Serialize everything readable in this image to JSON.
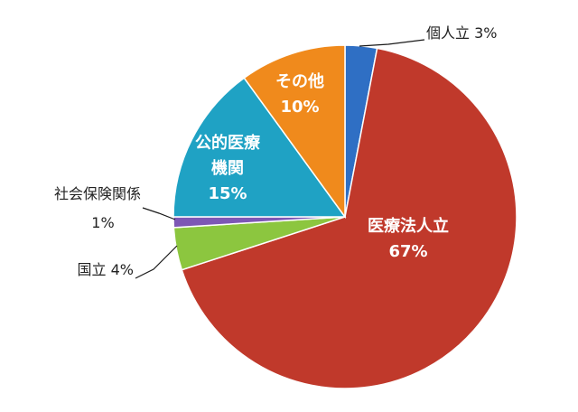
{
  "chart_data": {
    "type": "pie",
    "title": "",
    "slices": [
      {
        "label": "個人立",
        "value": 3,
        "value_text": "3%",
        "color": "#2f6fc4",
        "label_pos": "outside"
      },
      {
        "label": "医療法人立",
        "value": 67,
        "value_text": "67%",
        "color": "#c0392b",
        "label_pos": "inside"
      },
      {
        "label": "国立",
        "value": 4,
        "value_text": "4%",
        "color": "#8cc63f",
        "label_pos": "outside"
      },
      {
        "label": "社会保険関係",
        "value": 1,
        "value_text": "1%",
        "color": "#7d57b5",
        "label_pos": "outside"
      },
      {
        "label": "公的医療機関",
        "label_lines": [
          "公的医療",
          "機関"
        ],
        "value": 15,
        "value_text": "15%",
        "color": "#1fa2c4",
        "label_pos": "inside"
      },
      {
        "label": "その他",
        "value": 10,
        "value_text": "10%",
        "color": "#f08a1c",
        "label_pos": "inside"
      }
    ],
    "start": "12 o'clock",
    "direction": "clockwise",
    "legend": "none"
  }
}
